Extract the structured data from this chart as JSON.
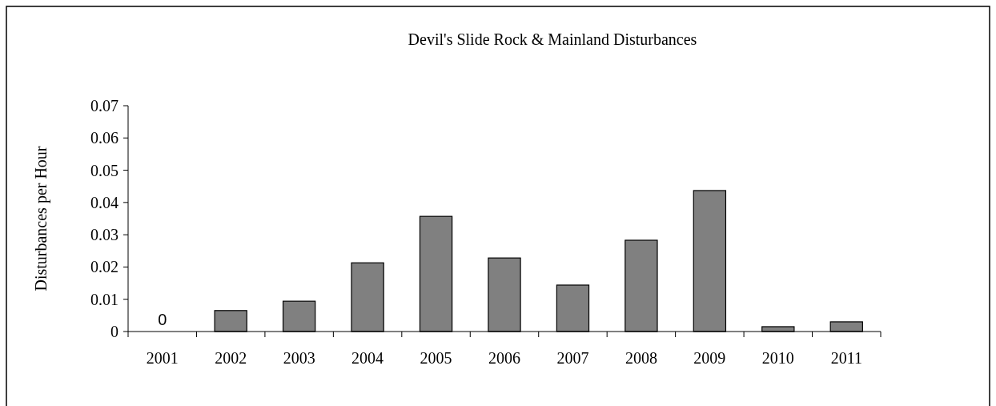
{
  "chart_data": {
    "type": "bar",
    "title": "Devil's Slide Rock & Mainland Disturbances",
    "ylabel": "Disturbances per Hour",
    "categories": [
      "2001",
      "2002",
      "2003",
      "2004",
      "2005",
      "2006",
      "2007",
      "2008",
      "2009",
      "2010",
      "2011"
    ],
    "values": [
      0,
      0.0065,
      0.0094,
      0.0213,
      0.0357,
      0.0228,
      0.0144,
      0.0283,
      0.0437,
      0.0015,
      0.003
    ],
    "color": "#808080",
    "ylim": [
      0,
      0.07
    ],
    "yticks": [
      0,
      0.01,
      0.02,
      0.03,
      0.04,
      0.05,
      0.06,
      0.07
    ],
    "grid": false,
    "annotations": [
      {
        "text": "0",
        "x": "2001",
        "y": 0
      }
    ]
  }
}
